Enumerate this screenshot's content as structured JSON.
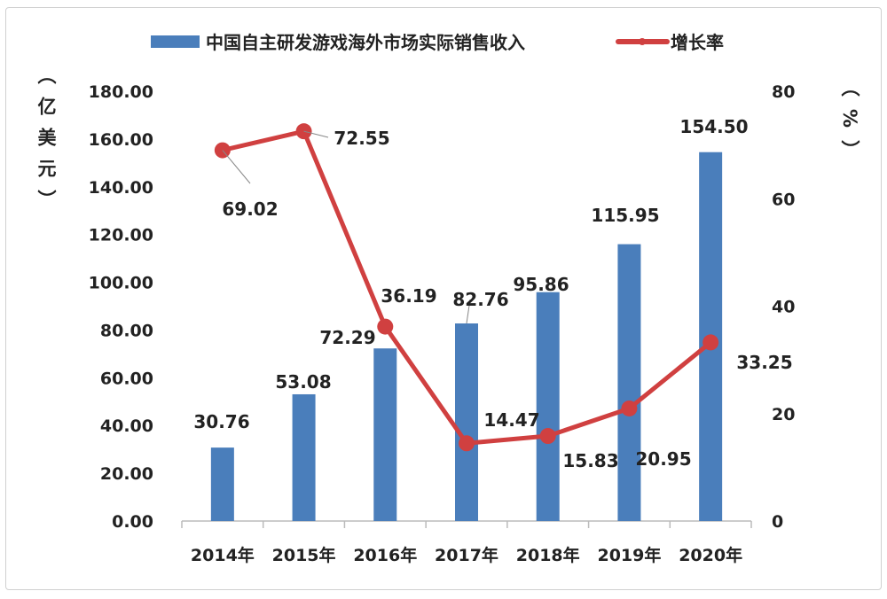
{
  "chart_data": {
    "type": "bar+line",
    "categories": [
      "2014年",
      "2015年",
      "2016年",
      "2017年",
      "2018年",
      "2019年",
      "2020年"
    ],
    "series": [
      {
        "name": "中国自主研发游戏海外市场实际销售收入",
        "type": "bar",
        "axis": "left",
        "color": "#4a7ebb",
        "values": [
          30.76,
          53.08,
          72.29,
          82.76,
          95.86,
          115.95,
          154.5
        ],
        "labels": [
          "30.76",
          "53.08",
          "72.29",
          "82.76",
          "95.86",
          "115.95",
          "154.50"
        ]
      },
      {
        "name": "增长率",
        "type": "line",
        "axis": "right",
        "color": "#d04040",
        "values": [
          69.02,
          72.55,
          36.19,
          14.47,
          15.83,
          20.95,
          33.25
        ],
        "labels": [
          "69.02",
          "72.55",
          "36.19",
          "14.47",
          "15.83",
          "20.95",
          "33.25"
        ]
      }
    ],
    "left_axis": {
      "label": "（亿美元）",
      "ylim": [
        0,
        180
      ],
      "ticks": [
        "0.00",
        "20.00",
        "40.00",
        "60.00",
        "80.00",
        "100.00",
        "120.00",
        "140.00",
        "160.00",
        "180.00"
      ]
    },
    "right_axis": {
      "label": "（%）",
      "ylim": [
        0,
        80
      ],
      "ticks": [
        "0",
        "20",
        "40",
        "60",
        "80"
      ]
    },
    "legend_position": "top",
    "grid": false
  }
}
